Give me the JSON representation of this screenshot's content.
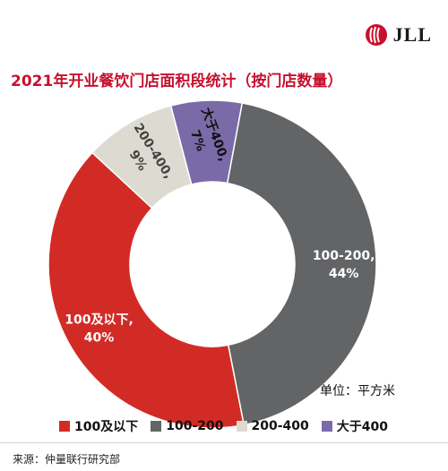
{
  "brand": {
    "logo_text": "JLL",
    "logo_color": "#c8102e"
  },
  "chart_data": {
    "type": "pie",
    "title": "2021年开业餐饮门店面积段统计（按门店数量）",
    "unit_note": "单位：平方米",
    "source": "来源：仲量联行研究部",
    "slices": [
      {
        "category": "大于400",
        "value": 7,
        "color": "#7a6ba8",
        "label_line1": "大于400,",
        "label_line2": "7%"
      },
      {
        "category": "100-200",
        "value": 44,
        "color": "#636466",
        "label_line1": "100-200,",
        "label_line2": "44%"
      },
      {
        "category": "100及以下",
        "value": 40,
        "color": "#d22b26",
        "label_line1": "100及以下,",
        "label_line2": "40%"
      },
      {
        "category": "200-400",
        "value": 9,
        "color": "#dddbd1",
        "label_line1": "200-400,",
        "label_line2": "9%"
      }
    ],
    "legend": [
      {
        "label": "100及以下",
        "color": "#d22b26"
      },
      {
        "label": "100-200",
        "color": "#636466"
      },
      {
        "label": "200-400",
        "color": "#dddbd1"
      },
      {
        "label": "大于400",
        "color": "#7a6ba8"
      }
    ]
  }
}
